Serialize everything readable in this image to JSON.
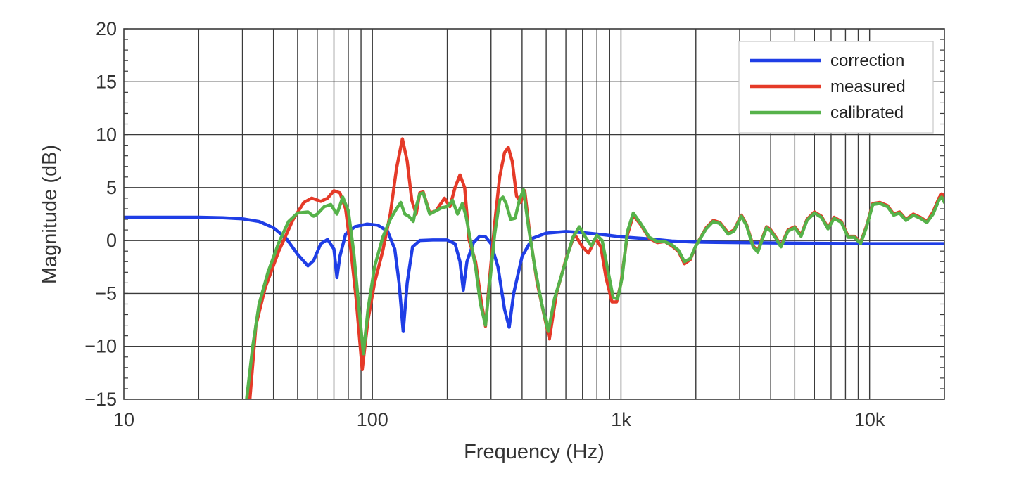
{
  "chart_data": {
    "type": "line",
    "title": "",
    "xlabel": "Frequency (Hz)",
    "ylabel": "Magnitude (dB)",
    "xscale": "log",
    "xlim": [
      10,
      20000
    ],
    "ylim": [
      -15,
      20
    ],
    "grid": true,
    "legend_position": "top-right",
    "x_ticks": [
      {
        "value": 10,
        "label": "10"
      },
      {
        "value": 100,
        "label": "100"
      },
      {
        "value": 1000,
        "label": "1k"
      },
      {
        "value": 10000,
        "label": "10k"
      }
    ],
    "y_ticks": [
      {
        "value": 20,
        "label": "20"
      },
      {
        "value": 15,
        "label": "15"
      },
      {
        "value": 10,
        "label": "10"
      },
      {
        "value": 5,
        "label": "5"
      },
      {
        "value": 0,
        "label": "0"
      },
      {
        "value": -5,
        "label": "−5"
      },
      {
        "value": -10,
        "label": "−10"
      },
      {
        "value": -15,
        "label": "−15"
      }
    ],
    "series": [
      {
        "name": "correction",
        "color": "#1f3ee6",
        "points": [
          [
            10,
            2.2
          ],
          [
            20,
            2.2
          ],
          [
            25,
            2.15
          ],
          [
            30,
            2.05
          ],
          [
            35,
            1.8
          ],
          [
            40,
            1.2
          ],
          [
            45,
            0.2
          ],
          [
            50,
            -1.3
          ],
          [
            55,
            -2.4
          ],
          [
            58,
            -1.9
          ],
          [
            62,
            -0.3
          ],
          [
            66,
            0.1
          ],
          [
            70,
            -0.8
          ],
          [
            72,
            -3.5
          ],
          [
            74,
            -1.5
          ],
          [
            78,
            0.6
          ],
          [
            85,
            1.3
          ],
          [
            95,
            1.55
          ],
          [
            105,
            1.45
          ],
          [
            115,
            0.9
          ],
          [
            123,
            -0.8
          ],
          [
            128,
            -4
          ],
          [
            133,
            -8.6
          ],
          [
            138,
            -4
          ],
          [
            145,
            -0.6
          ],
          [
            155,
            0
          ],
          [
            175,
            0.05
          ],
          [
            200,
            0.05
          ],
          [
            215,
            -0.3
          ],
          [
            225,
            -2
          ],
          [
            232,
            -4.7
          ],
          [
            240,
            -2
          ],
          [
            255,
            -0.2
          ],
          [
            270,
            0.4
          ],
          [
            285,
            0.35
          ],
          [
            300,
            -0.3
          ],
          [
            320,
            -2.5
          ],
          [
            340,
            -6.5
          ],
          [
            355,
            -8.2
          ],
          [
            370,
            -5
          ],
          [
            400,
            -1.5
          ],
          [
            440,
            0.2
          ],
          [
            500,
            0.7
          ],
          [
            600,
            0.85
          ],
          [
            700,
            0.75
          ],
          [
            850,
            0.55
          ],
          [
            1000,
            0.35
          ],
          [
            1300,
            0.15
          ],
          [
            1600,
            -0.05
          ],
          [
            2000,
            -0.15
          ],
          [
            3000,
            -0.2
          ],
          [
            5000,
            -0.25
          ],
          [
            10000,
            -0.3
          ],
          [
            20000,
            -0.3
          ]
        ]
      },
      {
        "name": "measured",
        "color": "#e53a28",
        "points": [
          [
            32,
            -15.5
          ],
          [
            34,
            -8
          ],
          [
            37,
            -4.5
          ],
          [
            42,
            -1
          ],
          [
            48,
            2
          ],
          [
            53,
            3.6
          ],
          [
            57,
            4
          ],
          [
            62,
            3.7
          ],
          [
            66,
            4
          ],
          [
            70,
            4.7
          ],
          [
            74,
            4.5
          ],
          [
            78,
            3
          ],
          [
            82,
            -1
          ],
          [
            86,
            -5.5
          ],
          [
            91,
            -12.2
          ],
          [
            96,
            -7.5
          ],
          [
            102,
            -4
          ],
          [
            110,
            -1
          ],
          [
            118,
            2.5
          ],
          [
            125,
            6.8
          ],
          [
            132,
            9.6
          ],
          [
            138,
            7.5
          ],
          [
            144,
            3.8
          ],
          [
            150,
            2.5
          ],
          [
            155,
            4.5
          ],
          [
            160,
            4.6
          ],
          [
            170,
            2.6
          ],
          [
            180,
            2.8
          ],
          [
            195,
            4
          ],
          [
            205,
            3.2
          ],
          [
            215,
            5
          ],
          [
            225,
            6.2
          ],
          [
            235,
            5
          ],
          [
            245,
            0
          ],
          [
            260,
            -2
          ],
          [
            275,
            -6
          ],
          [
            285,
            -8.1
          ],
          [
            295,
            -4
          ],
          [
            310,
            1.5
          ],
          [
            325,
            6
          ],
          [
            340,
            8.3
          ],
          [
            352,
            8.8
          ],
          [
            365,
            7.5
          ],
          [
            380,
            4.2
          ],
          [
            395,
            3.6
          ],
          [
            410,
            4.7
          ],
          [
            430,
            0.5
          ],
          [
            460,
            -4
          ],
          [
            490,
            -7
          ],
          [
            515,
            -9.3
          ],
          [
            550,
            -5
          ],
          [
            600,
            -1.8
          ],
          [
            650,
            0.6
          ],
          [
            700,
            -0.6
          ],
          [
            740,
            -1.2
          ],
          [
            790,
            0.2
          ],
          [
            830,
            -0.6
          ],
          [
            870,
            -3.5
          ],
          [
            920,
            -5.8
          ],
          [
            960,
            -5.8
          ],
          [
            1000,
            -4
          ],
          [
            1060,
            0.5
          ],
          [
            1120,
            2.4
          ],
          [
            1200,
            1.5
          ],
          [
            1300,
            0.2
          ],
          [
            1400,
            -0.2
          ],
          [
            1500,
            -0.1
          ],
          [
            1600,
            -0.5
          ],
          [
            1700,
            -1
          ],
          [
            1800,
            -2.2
          ],
          [
            1900,
            -1.8
          ],
          [
            2000,
            -0.5
          ],
          [
            2200,
            1.2
          ],
          [
            2350,
            1.9
          ],
          [
            2500,
            1.7
          ],
          [
            2700,
            0.7
          ],
          [
            2850,
            1
          ],
          [
            3050,
            2.4
          ],
          [
            3200,
            1.5
          ],
          [
            3400,
            -0.5
          ],
          [
            3550,
            -1
          ],
          [
            3700,
            0.2
          ],
          [
            3850,
            1.3
          ],
          [
            4000,
            1
          ],
          [
            4200,
            0.3
          ],
          [
            4400,
            -0.5
          ],
          [
            4700,
            1
          ],
          [
            5000,
            1.3
          ],
          [
            5300,
            0.5
          ],
          [
            5600,
            2
          ],
          [
            6000,
            2.7
          ],
          [
            6400,
            2.3
          ],
          [
            6800,
            1.2
          ],
          [
            7200,
            2.2
          ],
          [
            7700,
            1.8
          ],
          [
            8200,
            0.4
          ],
          [
            8700,
            0.4
          ],
          [
            9200,
            -0.2
          ],
          [
            9700,
            1.3
          ],
          [
            10300,
            3.5
          ],
          [
            11000,
            3.6
          ],
          [
            11800,
            3.3
          ],
          [
            12500,
            2.5
          ],
          [
            13200,
            2.7
          ],
          [
            14000,
            2
          ],
          [
            15000,
            2.5
          ],
          [
            16000,
            2.2
          ],
          [
            17000,
            1.8
          ],
          [
            18000,
            2.7
          ],
          [
            19000,
            4
          ],
          [
            19500,
            4.4
          ],
          [
            20000,
            4.2
          ]
        ]
      },
      {
        "name": "calibrated",
        "color": "#56b24a",
        "points": [
          [
            31,
            -15.5
          ],
          [
            33,
            -10
          ],
          [
            35,
            -6
          ],
          [
            38,
            -3
          ],
          [
            42,
            -0.2
          ],
          [
            46,
            1.8
          ],
          [
            50,
            2.6
          ],
          [
            55,
            2.7
          ],
          [
            58,
            2.3
          ],
          [
            60,
            2.5
          ],
          [
            64,
            3.2
          ],
          [
            68,
            3.4
          ],
          [
            72,
            2.5
          ],
          [
            76,
            4.1
          ],
          [
            80,
            2.8
          ],
          [
            84,
            -1
          ],
          [
            88,
            -6
          ],
          [
            92,
            -10.7
          ],
          [
            96,
            -6.5
          ],
          [
            102,
            -2.5
          ],
          [
            110,
            0.3
          ],
          [
            118,
            2
          ],
          [
            125,
            3
          ],
          [
            130,
            3.6
          ],
          [
            135,
            2.5
          ],
          [
            140,
            2.3
          ],
          [
            146,
            1.8
          ],
          [
            150,
            3.2
          ],
          [
            155,
            4.4
          ],
          [
            160,
            4.5
          ],
          [
            170,
            2.5
          ],
          [
            180,
            2.8
          ],
          [
            190,
            3.1
          ],
          [
            200,
            3.2
          ],
          [
            210,
            3.8
          ],
          [
            220,
            2.5
          ],
          [
            230,
            3.5
          ],
          [
            238,
            2.3
          ],
          [
            248,
            0
          ],
          [
            260,
            -2.5
          ],
          [
            272,
            -6
          ],
          [
            285,
            -8
          ],
          [
            295,
            -4.5
          ],
          [
            310,
            0.5
          ],
          [
            325,
            3.8
          ],
          [
            335,
            4.1
          ],
          [
            345,
            3.5
          ],
          [
            360,
            2
          ],
          [
            375,
            2.1
          ],
          [
            390,
            3.8
          ],
          [
            405,
            4.8
          ],
          [
            425,
            1.2
          ],
          [
            450,
            -2.5
          ],
          [
            480,
            -6
          ],
          [
            510,
            -8.6
          ],
          [
            540,
            -5.5
          ],
          [
            590,
            -2.5
          ],
          [
            640,
            0.3
          ],
          [
            680,
            1.3
          ],
          [
            720,
            0.3
          ],
          [
            760,
            -0.5
          ],
          [
            800,
            0.5
          ],
          [
            840,
            0
          ],
          [
            880,
            -2.5
          ],
          [
            930,
            -5.4
          ],
          [
            970,
            -5.5
          ],
          [
            1010,
            -3.5
          ],
          [
            1060,
            0.8
          ],
          [
            1120,
            2.6
          ],
          [
            1200,
            1.6
          ],
          [
            1300,
            0.3
          ],
          [
            1400,
            -0.1
          ],
          [
            1500,
            -0.1
          ],
          [
            1600,
            -0.4
          ],
          [
            1700,
            -0.9
          ],
          [
            1800,
            -2
          ],
          [
            1900,
            -1.7
          ],
          [
            2000,
            -0.5
          ],
          [
            2200,
            1.1
          ],
          [
            2350,
            1.8
          ],
          [
            2500,
            1.6
          ],
          [
            2700,
            0.6
          ],
          [
            2850,
            0.9
          ],
          [
            3050,
            2.3
          ],
          [
            3200,
            1.4
          ],
          [
            3400,
            -0.6
          ],
          [
            3550,
            -1.1
          ],
          [
            3700,
            0.1
          ],
          [
            3850,
            1.2
          ],
          [
            4000,
            0.9
          ],
          [
            4200,
            0.2
          ],
          [
            4400,
            -0.6
          ],
          [
            4700,
            0.9
          ],
          [
            5000,
            1.2
          ],
          [
            5300,
            0.4
          ],
          [
            5600,
            1.9
          ],
          [
            6000,
            2.6
          ],
          [
            6400,
            2.2
          ],
          [
            6800,
            1.1
          ],
          [
            7200,
            2.1
          ],
          [
            7700,
            1.7
          ],
          [
            8200,
            0.3
          ],
          [
            8700,
            0.3
          ],
          [
            9200,
            -0.3
          ],
          [
            9700,
            1.2
          ],
          [
            10300,
            3.4
          ],
          [
            11000,
            3.5
          ],
          [
            11800,
            3.2
          ],
          [
            12500,
            2.4
          ],
          [
            13200,
            2.6
          ],
          [
            14000,
            1.9
          ],
          [
            15000,
            2.4
          ],
          [
            16000,
            2.1
          ],
          [
            17000,
            1.7
          ],
          [
            18000,
            2.5
          ],
          [
            19000,
            3.8
          ],
          [
            19500,
            4.1
          ],
          [
            20000,
            3.6
          ]
        ]
      }
    ]
  }
}
